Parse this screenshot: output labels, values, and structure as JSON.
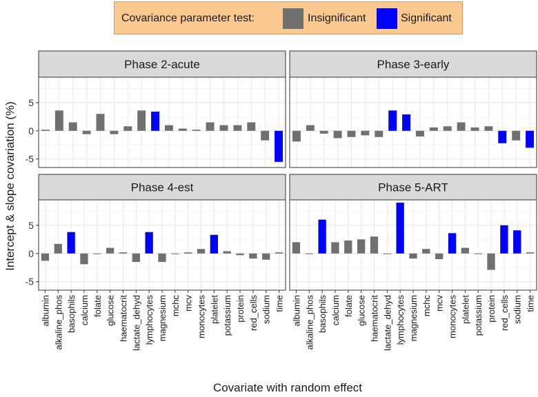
{
  "chart_data": {
    "type": "bar",
    "legend": {
      "title": "Covariance parameter test:",
      "entries": [
        {
          "label": "Insignificant",
          "color": "#707070"
        },
        {
          "label": "Significant",
          "color": "#0000ff"
        }
      ],
      "position": "top"
    },
    "xlabel": "Covariate with random effect",
    "ylabel": "Intercept & slope covariation (%)",
    "ylim": [
      -6.5,
      9.5
    ],
    "yticks": [
      -5,
      0,
      5
    ],
    "grid": true,
    "panels": [
      {
        "title": "Phase 2-acute",
        "categories": [
          "albumin",
          "alkaline_phos",
          "basophils",
          "calcium",
          "folate",
          "glucose",
          "haematocrit",
          "lactate_dehyd",
          "lymphocytes",
          "magnesium",
          "mchc",
          "mcv",
          "monocytes",
          "potassium",
          "protein",
          "red_cells",
          "sodium",
          "time"
        ],
        "values": [
          0.2,
          3.6,
          1.5,
          -0.6,
          3.0,
          -0.6,
          0.8,
          3.6,
          3.4,
          1.0,
          0.4,
          0.2,
          1.5,
          1.0,
          1.0,
          1.5,
          -1.7,
          -5.5
        ],
        "significant": [
          false,
          false,
          false,
          false,
          false,
          false,
          false,
          false,
          true,
          false,
          false,
          false,
          false,
          false,
          false,
          false,
          false,
          true
        ]
      },
      {
        "title": "Phase 3-early",
        "categories": [
          "albumin",
          "alkaline_phos",
          "basophils",
          "calcium",
          "folate",
          "glucose",
          "haematocrit",
          "lactate_dehyd",
          "lymphocytes",
          "mchc",
          "mcv",
          "monocytes",
          "platelet",
          "potassium",
          "protein",
          "red_cells",
          "sodium",
          "time"
        ],
        "values": [
          -1.9,
          1.0,
          -0.5,
          -1.3,
          -1.1,
          -0.8,
          -1.1,
          3.6,
          2.9,
          -1.0,
          0.6,
          0.8,
          1.5,
          0.6,
          0.8,
          -2.2,
          -1.7,
          -3.0
        ],
        "significant": [
          false,
          false,
          false,
          false,
          false,
          false,
          false,
          true,
          true,
          false,
          false,
          false,
          false,
          false,
          false,
          true,
          false,
          true
        ]
      },
      {
        "title": "Phase 4-est",
        "categories": [
          "albumin",
          "alkaline_phos",
          "basophils",
          "calcium",
          "folate",
          "glucose",
          "haematocrit",
          "lactate_dehyd",
          "lymphocytes",
          "magnesium",
          "mchc",
          "mcv",
          "monocytes",
          "platelet",
          "potassium",
          "protein",
          "red_cells",
          "sodium",
          "time"
        ],
        "values": [
          -1.3,
          1.7,
          3.8,
          -1.9,
          -0.1,
          1.0,
          0.2,
          -1.5,
          3.8,
          -1.5,
          -0.1,
          0.2,
          0.8,
          3.3,
          0.4,
          -0.3,
          -0.9,
          -1.1,
          0.2
        ],
        "significant": [
          false,
          false,
          true,
          false,
          false,
          false,
          false,
          false,
          true,
          false,
          false,
          false,
          false,
          true,
          false,
          false,
          false,
          false,
          false
        ]
      },
      {
        "title": "Phase 5-ART",
        "categories": [
          "albumin",
          "alkaline_phos",
          "basophils",
          "calcium",
          "folate",
          "glucose",
          "haematocrit",
          "lactate_dehyd",
          "lymphocytes",
          "magnesium",
          "mchc",
          "mcv",
          "monocytes",
          "platelet",
          "potassium",
          "protein",
          "red_cells",
          "sodium",
          "time"
        ],
        "values": [
          2.0,
          -0.1,
          6.0,
          2.0,
          2.3,
          2.5,
          3.0,
          -0.1,
          9.0,
          -0.9,
          0.8,
          -1.0,
          3.6,
          1.0,
          -0.1,
          -2.9,
          5.0,
          4.1,
          0.2
        ],
        "significant": [
          false,
          false,
          true,
          false,
          false,
          false,
          false,
          false,
          true,
          false,
          false,
          false,
          true,
          false,
          false,
          false,
          true,
          true,
          false
        ]
      }
    ]
  }
}
